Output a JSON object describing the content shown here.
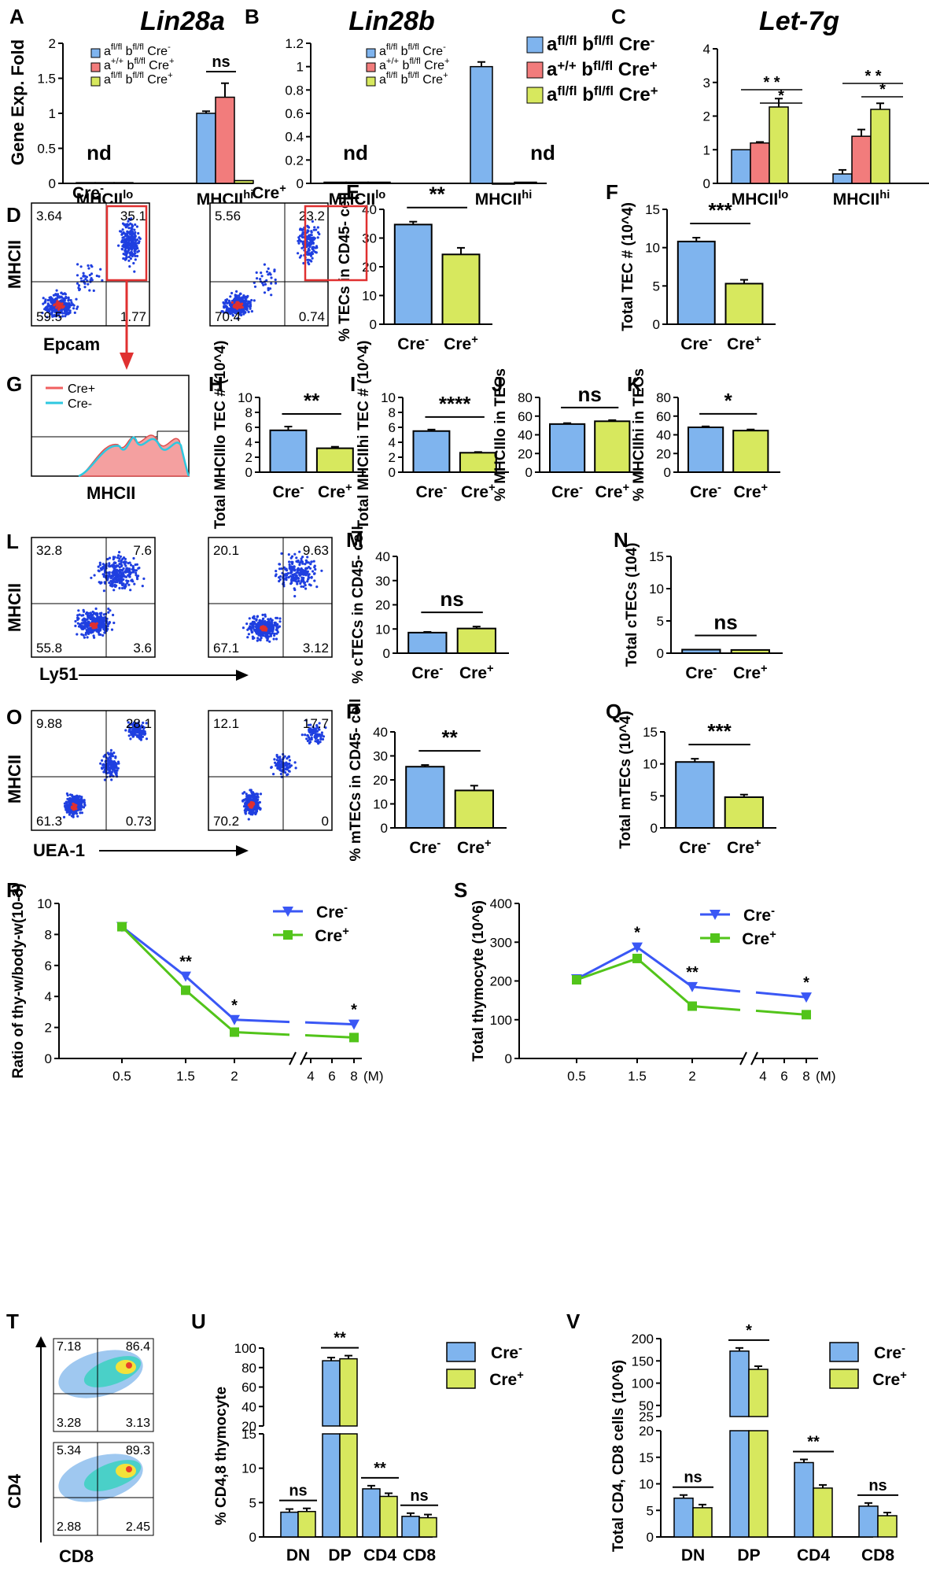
{
  "colors": {
    "blue": "#7fb4ee",
    "red": "#f27c7c",
    "green": "#d7e85e",
    "line_blue": "#3a57f5",
    "line_green": "#52c41a",
    "dot": "#1f3fe0",
    "gate": "#e03030"
  },
  "genotypes": {
    "g1": {
      "pre": "a",
      "sup1": "fl/fl",
      "mid": " b",
      "sup2": "fl/fl",
      "post": " Cre",
      "sup3": "-"
    },
    "g2": {
      "pre": "a",
      "sup1": "+/+",
      "mid": " b",
      "sup2": "fl/fl",
      "post": " Cre",
      "sup3": "+"
    },
    "g3": {
      "pre": "a",
      "sup1": "fl/fl",
      "mid": " b",
      "sup2": "fl/fl",
      "post": " Cre",
      "sup3": "+"
    }
  },
  "groups": {
    "neg_base": "Cre",
    "neg_sup": "-",
    "pos_base": "Cre",
    "pos_sup": "+"
  },
  "panel_letters": {
    "A": "A",
    "B": "B",
    "C": "C",
    "D": "D",
    "E": "E",
    "F": "F",
    "G": "G",
    "H": "H",
    "I": "I",
    "J": "J",
    "K": "K",
    "L": "L",
    "M": "M",
    "N": "N",
    "O": "O",
    "P": "P",
    "Q": "Q",
    "R": "R",
    "S": "S",
    "T": "T",
    "U": "U",
    "V": "V"
  },
  "chart_data": [
    {
      "panel": "A",
      "type": "bar",
      "title": "Lin28a",
      "ylabel": "Gene Exp. Fold",
      "ylim": [
        0,
        2
      ],
      "yticks": [
        "0",
        "0.5",
        "1",
        "1.5",
        "2"
      ],
      "categories": [
        {
          "base": "MHCII",
          "sup": "lo"
        },
        {
          "base": "MHCII",
          "sup": "hi"
        }
      ],
      "series": [
        {
          "name": "g1",
          "values": [
            0.01,
            1.0
          ]
        },
        {
          "name": "g2",
          "values": [
            0.01,
            1.23
          ]
        },
        {
          "name": "g3",
          "values": [
            0.01,
            0.04
          ]
        }
      ],
      "errors": [
        [
          0,
          0.03
        ],
        [
          0,
          0.2
        ],
        [
          0,
          0
        ]
      ],
      "annotations": [
        "nd",
        "ns"
      ]
    },
    {
      "panel": "B",
      "type": "bar",
      "title": "Lin28b",
      "ylim": [
        0,
        1.2
      ],
      "yticks": [
        "0",
        "0.2",
        "0.4",
        "0.6",
        "0.8",
        "1",
        "1.2"
      ],
      "categories": [
        {
          "base": "MHCII",
          "sup": "lo"
        },
        {
          "base": "MHCII",
          "sup": "hi"
        }
      ],
      "series": [
        {
          "name": "g1",
          "values": [
            0.01,
            1.0
          ]
        },
        {
          "name": "g2",
          "values": [
            0.01,
            0.0
          ]
        },
        {
          "name": "g3",
          "values": [
            0.01,
            0.01
          ]
        }
      ],
      "errors": [
        [
          0,
          0.04
        ],
        [
          0,
          0
        ],
        [
          0,
          0
        ]
      ],
      "annotations": [
        "nd",
        "nd"
      ]
    },
    {
      "panel": "C",
      "type": "bar",
      "title": "Let-7g",
      "ylim": [
        0,
        4
      ],
      "yticks": [
        "0",
        "1",
        "2",
        "3",
        "4"
      ],
      "categories": [
        {
          "base": "MHCII",
          "sup": "lo"
        },
        {
          "base": "MHCII",
          "sup": "hi"
        }
      ],
      "series": [
        {
          "name": "g1",
          "values": [
            1.0,
            0.28
          ]
        },
        {
          "name": "g2",
          "values": [
            1.2,
            1.4
          ]
        },
        {
          "name": "g3",
          "values": [
            2.27,
            2.2
          ]
        }
      ],
      "errors": [
        [
          0,
          0.12
        ],
        [
          0.03,
          0.2
        ],
        [
          0.25,
          0.18
        ]
      ],
      "annotations": [
        "* *",
        "*",
        "* *",
        "*"
      ]
    },
    {
      "panel": "E",
      "type": "bar",
      "ylabel": "% TECs in CD45- cell",
      "ylim": [
        0,
        40
      ],
      "yticks": [
        "0",
        "10",
        "20",
        "30",
        "40"
      ],
      "values": [
        34.7,
        24.3
      ],
      "errors": [
        1.0,
        2.3
      ],
      "significance": "**"
    },
    {
      "panel": "F",
      "type": "bar",
      "ylabel": "Total TEC # (10^4)",
      "ylim": [
        0,
        15
      ],
      "yticks": [
        "0",
        "5",
        "10",
        "15"
      ],
      "values": [
        10.8,
        5.3
      ],
      "errors": [
        0.5,
        0.5
      ],
      "significance": "***"
    },
    {
      "panel": "H",
      "type": "bar",
      "ylabel": "Total MHCIIlo TEC # (10^4)",
      "ylim": [
        0,
        10
      ],
      "yticks": [
        "0",
        "2",
        "4",
        "6",
        "8",
        "10"
      ],
      "values": [
        5.6,
        3.2
      ],
      "errors": [
        0.5,
        0.2
      ],
      "significance": "**"
    },
    {
      "panel": "I",
      "type": "bar",
      "ylabel": "Total MHCIIhi TEC # (10^4)",
      "ylim": [
        0,
        10
      ],
      "yticks": [
        "0",
        "2",
        "4",
        "6",
        "8",
        "10"
      ],
      "values": [
        5.5,
        2.6
      ],
      "errors": [
        0.2,
        0.1
      ],
      "significance": "****"
    },
    {
      "panel": "J",
      "type": "bar",
      "ylabel": "% MHCIIlo in TECs",
      "ylim": [
        0,
        80
      ],
      "yticks": [
        "0",
        "20",
        "40",
        "60",
        "80"
      ],
      "values": [
        51.5,
        54.5
      ],
      "errors": [
        1.0,
        1.2
      ],
      "significance": "ns"
    },
    {
      "panel": "K",
      "type": "bar",
      "ylabel": "% MHCIIhi in TECs",
      "ylim": [
        0,
        80
      ],
      "yticks": [
        "0",
        "20",
        "40",
        "60",
        "80"
      ],
      "values": [
        48.0,
        44.5
      ],
      "errors": [
        1.0,
        1.2
      ],
      "significance": "*"
    },
    {
      "panel": "M",
      "type": "bar",
      "ylabel": "% cTECs in CD45- cell",
      "ylim": [
        0,
        40
      ],
      "yticks": [
        "0",
        "10",
        "20",
        "30",
        "40"
      ],
      "values": [
        8.5,
        10.2
      ],
      "errors": [
        0.3,
        0.8
      ],
      "significance": "ns"
    },
    {
      "panel": "N",
      "type": "bar",
      "ylabel": "Total cTECs (104)",
      "ylim": [
        0,
        15
      ],
      "yticks": [
        "0",
        "5",
        "10",
        "15"
      ],
      "values": [
        0.55,
        0.5
      ],
      "errors": [
        0,
        0
      ],
      "significance": "ns"
    },
    {
      "panel": "P",
      "type": "bar",
      "ylabel": "% mTECs in CD45- cell",
      "ylim": [
        0,
        40
      ],
      "yticks": [
        "0",
        "10",
        "20",
        "30",
        "40"
      ],
      "values": [
        25.5,
        15.6
      ],
      "errors": [
        0.7,
        2.0
      ],
      "significance": "**"
    },
    {
      "panel": "Q",
      "type": "bar",
      "ylabel": "Total mTECs (10^4)",
      "ylim": [
        0,
        15
      ],
      "yticks": [
        "0",
        "5",
        "10",
        "15"
      ],
      "values": [
        10.3,
        4.8
      ],
      "errors": [
        0.5,
        0.4
      ],
      "significance": "***"
    },
    {
      "panel": "R",
      "type": "line",
      "ylabel": "Ratio of thy-w/body-w(10-3)",
      "ylim": [
        0,
        10
      ],
      "yticks": [
        "0",
        "2",
        "4",
        "6",
        "8",
        "10"
      ],
      "xtick_labels": [
        "0.5",
        "1.5",
        "2",
        "4",
        "6",
        "8"
      ],
      "x_unit": "(M)",
      "series": [
        {
          "name": "neg",
          "x": [
            0.5,
            1.5,
            2,
            8
          ],
          "values": [
            8.5,
            5.3,
            2.5,
            2.2
          ]
        },
        {
          "name": "pos",
          "x": [
            0.5,
            1.5,
            2,
            8
          ],
          "values": [
            8.5,
            4.4,
            1.7,
            1.35
          ]
        }
      ],
      "significance": [
        "**",
        "*",
        "*"
      ]
    },
    {
      "panel": "S",
      "type": "line",
      "ylabel": "Total thymocyte (10^6)",
      "ylim": [
        0,
        400
      ],
      "yticks": [
        "0",
        "100",
        "200",
        "300",
        "400"
      ],
      "xtick_labels": [
        "0.5",
        "1.5",
        "2",
        "4",
        "6",
        "8"
      ],
      "x_unit": "(M)",
      "series": [
        {
          "name": "neg",
          "x": [
            0.5,
            1.5,
            2,
            8
          ],
          "values": [
            205,
            287,
            185,
            158
          ]
        },
        {
          "name": "pos",
          "x": [
            0.5,
            1.5,
            2,
            8
          ],
          "values": [
            203,
            258,
            135,
            113
          ]
        }
      ],
      "significance": [
        "*",
        "**",
        "*"
      ]
    },
    {
      "panel": "U",
      "type": "bar",
      "ylabel": "% CD4,8 thymocyte",
      "categories": [
        "DN",
        "DP",
        "CD4",
        "CD8"
      ],
      "yticks_top": [
        "20",
        "40",
        "60",
        "80",
        "100"
      ],
      "yticks_bottom": [
        "0",
        "5",
        "10",
        "15"
      ],
      "series": [
        {
          "name": "neg",
          "values": [
            3.6,
            87,
            7.0,
            3.0
          ]
        },
        {
          "name": "pos",
          "values": [
            3.7,
            89,
            5.9,
            2.8
          ]
        }
      ],
      "significance": [
        "ns",
        "**",
        "**",
        "ns"
      ]
    },
    {
      "panel": "V",
      "type": "bar",
      "ylabel": "Total CD4, CD8 cells (10^6)",
      "categories": [
        "DN",
        "DP",
        "CD4",
        "CD8"
      ],
      "yticks_top": [
        "25",
        "50",
        "100",
        "150",
        "200"
      ],
      "yticks_bottom": [
        "0",
        "5",
        "10",
        "15",
        "20"
      ],
      "series": [
        {
          "name": "neg",
          "values": [
            7.3,
            172,
            14.0,
            5.8
          ]
        },
        {
          "name": "pos",
          "values": [
            5.5,
            131,
            9.2,
            4.0
          ]
        }
      ],
      "significance": [
        "ns",
        "*",
        "**",
        "ns"
      ]
    },
    {
      "panel": "D",
      "type": "scatter",
      "xlabel": "Epcam",
      "ylabel": "MHCII",
      "plots": [
        {
          "header": "neg",
          "quadrants": [
            "3.64",
            "35.1",
            "59.5",
            "1.77"
          ]
        },
        {
          "header": "pos",
          "quadrants": [
            "5.56",
            "23.2",
            "70.4",
            "0.74"
          ]
        }
      ]
    },
    {
      "panel": "G",
      "type": "histogram",
      "xlabel": "MHCII",
      "legend": [
        "Cre+",
        "Cre-"
      ]
    },
    {
      "panel": "L",
      "type": "scatter",
      "xlabel": "Ly51",
      "ylabel": "MHCII",
      "plots": [
        {
          "quadrants": [
            "32.8",
            "7.6",
            "55.8",
            "3.6"
          ]
        },
        {
          "quadrants": [
            "20.1",
            "9.63",
            "67.1",
            "3.12"
          ]
        }
      ]
    },
    {
      "panel": "O",
      "type": "scatter",
      "xlabel": "UEA-1",
      "ylabel": "MHCII",
      "plots": [
        {
          "quadrants": [
            "9.88",
            "28.1",
            "61.3",
            "0.73"
          ]
        },
        {
          "quadrants": [
            "12.1",
            "17.7",
            "70.2",
            "0"
          ]
        }
      ]
    },
    {
      "panel": "T",
      "type": "scatter",
      "xlabel": "CD8",
      "ylabel": "CD4",
      "plots": [
        {
          "quadrants": [
            "7.18",
            "86.4",
            "3.28",
            "3.13"
          ]
        },
        {
          "quadrants": [
            "5.34",
            "89.3",
            "2.88",
            "2.45"
          ]
        }
      ]
    }
  ]
}
